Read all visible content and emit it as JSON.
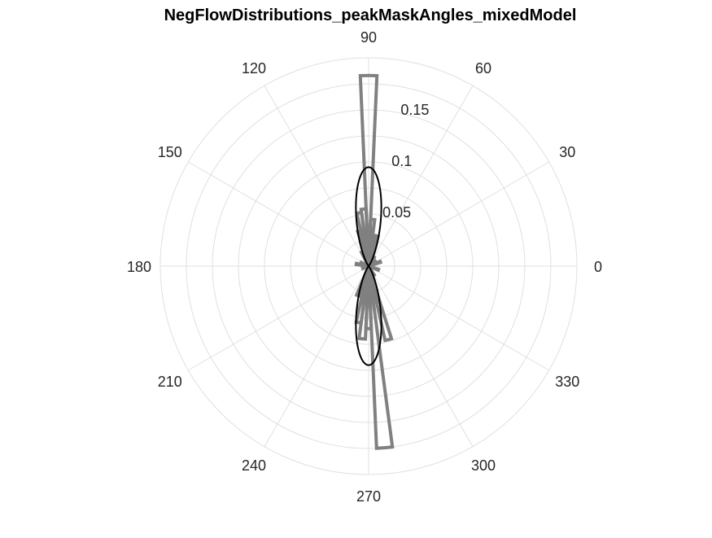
{
  "chart_data": {
    "type": "polar-histogram",
    "title": "NegFlowDistributions_peakMaskAngles_mixedModel",
    "angular_ticks": [
      "0",
      "30",
      "60",
      "90",
      "120",
      "150",
      "180",
      "210",
      "240",
      "270",
      "300",
      "330"
    ],
    "radial_ticks": [
      {
        "value": 0.05,
        "label": "0.05"
      },
      {
        "value": 0.1,
        "label": "0.1"
      },
      {
        "value": 0.15,
        "label": "0.15"
      }
    ],
    "rlim": [
      0,
      0.2
    ],
    "grid": true,
    "histogram": {
      "bin_width_deg": 5,
      "bins": [
        {
          "angle": 0,
          "value": 0.0025
        },
        {
          "angle": 20,
          "value": 0.012
        },
        {
          "angle": 40,
          "value": 0.008
        },
        {
          "angle": 60,
          "value": 0.01
        },
        {
          "angle": 75,
          "value": 0.03
        },
        {
          "angle": 80,
          "value": 0.028
        },
        {
          "angle": 85,
          "value": 0.045
        },
        {
          "angle": 90,
          "value": 0.183
        },
        {
          "angle": 95,
          "value": 0.055
        },
        {
          "angle": 100,
          "value": 0.052
        },
        {
          "angle": 105,
          "value": 0.035
        },
        {
          "angle": 115,
          "value": 0.015
        },
        {
          "angle": 155,
          "value": 0.008
        },
        {
          "angle": 170,
          "value": 0.012
        },
        {
          "angle": 200,
          "value": 0.006
        },
        {
          "angle": 250,
          "value": 0.03
        },
        {
          "angle": 260,
          "value": 0.055
        },
        {
          "angle": 265,
          "value": 0.07
        },
        {
          "angle": 270,
          "value": 0.06
        },
        {
          "angle": 275,
          "value": 0.175
        },
        {
          "angle": 285,
          "value": 0.073
        },
        {
          "angle": 300,
          "value": 0.01
        },
        {
          "angle": 340,
          "value": 0.01
        }
      ],
      "color": "#808080"
    },
    "model_fit": {
      "peak_angles_deg": [
        90,
        270
      ],
      "peak_value": 0.095,
      "concentration": 22,
      "color": "#000000"
    }
  }
}
